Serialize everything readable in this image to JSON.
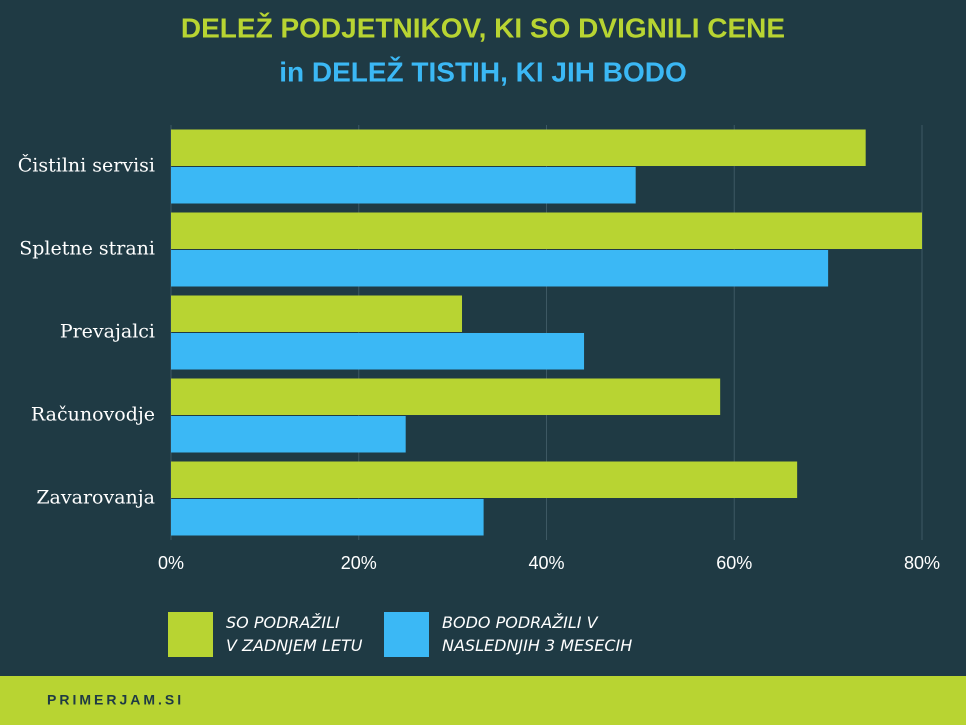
{
  "chart_data": {
    "type": "hbar",
    "title": "DELEŽ PODJETNIKOV, KI SO DVIGNILI CENE",
    "subtitle": "in DELEŽ TISTIH, KI JIH BODO",
    "categories": [
      "Čistilni servisi",
      "Spletne strani",
      "Prevajalci",
      "Računovodje",
      "Zavarovanja"
    ],
    "series": [
      {
        "name": "SO PODRAŽILI\nV ZADNJEM LETU",
        "color": "#b8d432",
        "values": [
          74,
          80,
          31,
          58.5,
          66.7
        ]
      },
      {
        "name": "BODO PODRAŽILI V\nNASLEDNJIH 3 MESECIH",
        "color": "#3bb8f5",
        "values": [
          49.5,
          70,
          44,
          25,
          33.3
        ]
      }
    ],
    "xlim": [
      0,
      80
    ],
    "xticks": [
      {
        "value": 0,
        "label": "0%"
      },
      {
        "value": 20,
        "label": "20%"
      },
      {
        "value": 40,
        "label": "40%"
      },
      {
        "value": 60,
        "label": "60%"
      },
      {
        "value": 80,
        "label": "80%"
      }
    ],
    "grid": true
  },
  "footer": "PRIMERJAM.SI"
}
